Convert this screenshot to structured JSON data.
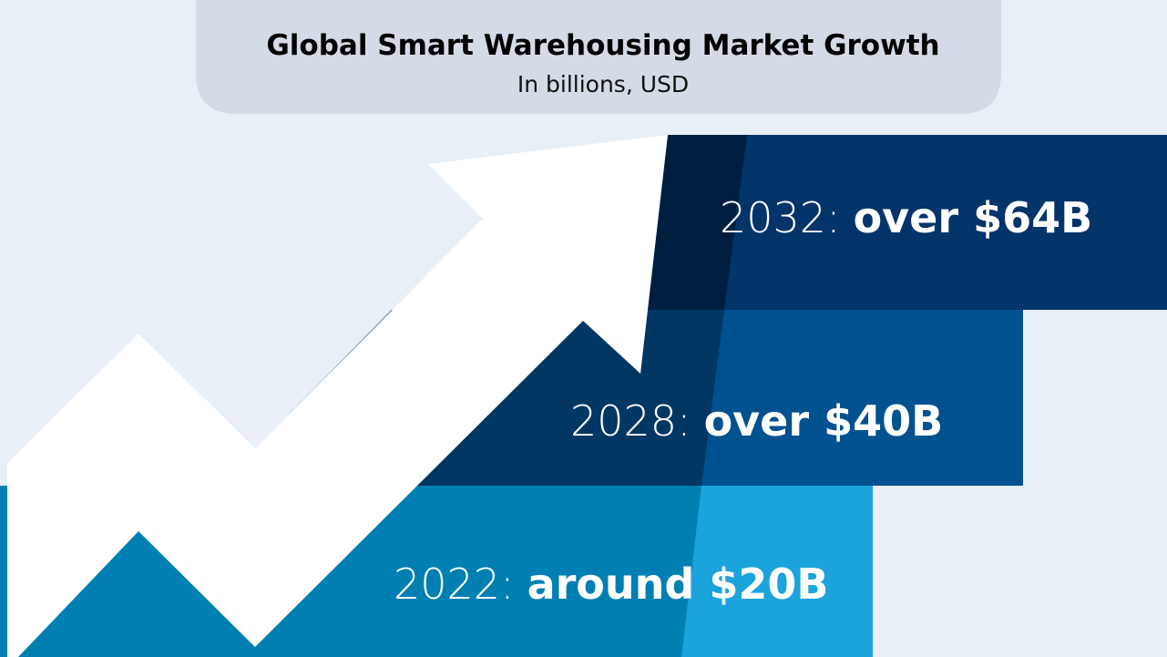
{
  "header": {
    "title": "Global Smart Warehousing Market Growth",
    "subtitle": "In billions, USD"
  },
  "steps": [
    {
      "year": "2032:",
      "amount": "over $64B"
    },
    {
      "year": "2028:",
      "amount": "over $40B"
    },
    {
      "year": "2022:",
      "amount": "around $20B"
    }
  ]
}
